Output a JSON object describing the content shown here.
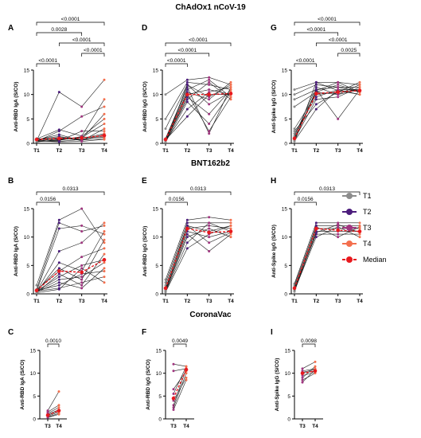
{
  "sections": {
    "chadox": "ChAdOx1 nCoV-19",
    "bnt": "BNT162b2",
    "coronavac": "CoronaVac"
  },
  "colors": {
    "T1": "#8c8c8c",
    "T2": "#4b1c7c",
    "T3": "#a0357f",
    "T4": "#f36f4e",
    "median": "#e8191e",
    "line": "#1a1a1a"
  },
  "legend": [
    {
      "label": "T1",
      "color": "#8c8c8c",
      "type": "point"
    },
    {
      "label": "T2",
      "color": "#4b1c7c",
      "type": "point"
    },
    {
      "label": "T3",
      "color": "#a0357f",
      "type": "point"
    },
    {
      "label": "T4",
      "color": "#f36f4e",
      "type": "point"
    },
    {
      "label": "Median",
      "color": "#e8191e",
      "type": "median"
    }
  ],
  "chart_data": [
    {
      "panel": "A",
      "type": "line",
      "ylabel": "Anti-RBD IgA (S/CO)",
      "categories": [
        "T1",
        "T2",
        "T3",
        "T4"
      ],
      "ylim": [
        0,
        15
      ],
      "yticks": [
        0,
        5,
        10,
        15
      ],
      "median": [
        0.8,
        1.0,
        1.1,
        1.6
      ],
      "series": [
        {
          "values": [
            0.5,
            10.5,
            7.5,
            13
          ]
        },
        {
          "values": [
            0.9,
            2.8,
            1.5,
            9
          ]
        },
        {
          "values": [
            0.4,
            2.5,
            5.5,
            7.5
          ]
        },
        {
          "values": [
            0.6,
            1.2,
            0.9,
            6
          ]
        },
        {
          "values": [
            1.0,
            0.6,
            1.4,
            5
          ]
        },
        {
          "values": [
            0.3,
            0.8,
            1.2,
            4
          ]
        },
        {
          "values": [
            0.7,
            1.8,
            0.5,
            3
          ]
        },
        {
          "values": [
            0.5,
            0.5,
            2.5,
            2.5
          ]
        },
        {
          "values": [
            0.9,
            0.9,
            1.0,
            2
          ]
        },
        {
          "values": [
            0.4,
            1.1,
            0.6,
            1.8
          ]
        },
        {
          "values": [
            0.6,
            0.4,
            0.8,
            1.5
          ]
        },
        {
          "values": [
            0.3,
            0.7,
            1.3,
            1.2
          ]
        },
        {
          "values": [
            0.8,
            1.4,
            0.7,
            1.0
          ]
        },
        {
          "values": [
            0.5,
            0.3,
            0.4,
            0.8
          ]
        }
      ],
      "comparisons": [
        {
          "from": 0,
          "to": 1,
          "label": "<0.0001"
        },
        {
          "from": 2,
          "to": 3,
          "label": "<0.0001"
        },
        {
          "from": 1,
          "to": 3,
          "label": "<0.0001"
        },
        {
          "from": 0,
          "to": 2,
          "label": "0.0028"
        },
        {
          "from": 0,
          "to": 3,
          "label": "<0.0001"
        }
      ]
    },
    {
      "panel": "D",
      "type": "line",
      "ylabel": "Anti-RBD IgG (S/CO)",
      "categories": [
        "T1",
        "T2",
        "T3",
        "T4"
      ],
      "ylim": [
        0,
        15
      ],
      "yticks": [
        0,
        5,
        10,
        15
      ],
      "median": [
        0.8,
        10.0,
        10.0,
        10.2
      ],
      "series": [
        {
          "values": [
            10.0,
            13.0,
            13.5,
            12.0
          ]
        },
        {
          "values": [
            5.0,
            12.5,
            12.0,
            11.0
          ]
        },
        {
          "values": [
            3.0,
            12.0,
            8.0,
            10.5
          ]
        },
        {
          "values": [
            1.0,
            11.5,
            2.0,
            11.5
          ]
        },
        {
          "values": [
            0.8,
            11.0,
            13.0,
            9.5
          ]
        },
        {
          "values": [
            0.5,
            10.5,
            9.0,
            12.5
          ]
        },
        {
          "values": [
            0.4,
            10.0,
            11.0,
            10.0
          ]
        },
        {
          "values": [
            0.3,
            9.5,
            6.0,
            11.0
          ]
        },
        {
          "values": [
            0.6,
            9.0,
            12.5,
            9.0
          ]
        },
        {
          "values": [
            0.2,
            8.5,
            4.0,
            10.5
          ]
        },
        {
          "values": [
            0.5,
            7.0,
            10.5,
            11.5
          ]
        },
        {
          "values": [
            0.7,
            5.5,
            10.0,
            10.0
          ]
        },
        {
          "values": [
            0.3,
            12.0,
            9.5,
            12.0
          ]
        },
        {
          "values": [
            0.9,
            10.2,
            2.5,
            9.5
          ]
        }
      ],
      "comparisons": [
        {
          "from": 0,
          "to": 1,
          "label": "<0.0001"
        },
        {
          "from": 0,
          "to": 2,
          "label": "<0.0001"
        },
        {
          "from": 0,
          "to": 3,
          "label": "<0.0001"
        }
      ]
    },
    {
      "panel": "G",
      "type": "line",
      "ylabel": "Anti-Spike IgG (S/CO)",
      "categories": [
        "T1",
        "T2",
        "T3",
        "T4"
      ],
      "ylim": [
        0,
        15
      ],
      "yticks": [
        0,
        5,
        10,
        15
      ],
      "median": [
        1.0,
        10.2,
        10.5,
        10.8
      ],
      "series": [
        {
          "values": [
            11.0,
            12.5,
            12.5,
            12.0
          ]
        },
        {
          "values": [
            10.0,
            12.0,
            11.5,
            11.5
          ]
        },
        {
          "values": [
            9.0,
            11.0,
            5.0,
            11.0
          ]
        },
        {
          "values": [
            7.5,
            10.5,
            12.0,
            10.5
          ]
        },
        {
          "values": [
            3.0,
            10.0,
            10.5,
            12.5
          ]
        },
        {
          "values": [
            2.0,
            9.5,
            11.0,
            10.0
          ]
        },
        {
          "values": [
            1.5,
            11.5,
            10.0,
            11.0
          ]
        },
        {
          "values": [
            1.0,
            10.8,
            12.5,
            10.5
          ]
        },
        {
          "values": [
            0.8,
            9.0,
            9.5,
            11.5
          ]
        },
        {
          "values": [
            0.6,
            12.5,
            10.8,
            10.0
          ]
        },
        {
          "values": [
            0.5,
            7.0,
            11.0,
            11.0
          ]
        },
        {
          "values": [
            1.2,
            10.5,
            10.0,
            12.0
          ]
        },
        {
          "values": [
            0.4,
            11.0,
            11.5,
            10.5
          ]
        },
        {
          "values": [
            2.5,
            8.0,
            10.5,
            11.0
          ]
        }
      ],
      "comparisons": [
        {
          "from": 0,
          "to": 1,
          "label": "<0.0001"
        },
        {
          "from": 2,
          "to": 3,
          "label": "0.0025"
        },
        {
          "from": 1,
          "to": 3,
          "label": "<0.0001"
        },
        {
          "from": 0,
          "to": 2,
          "label": "<0.0001"
        },
        {
          "from": 0,
          "to": 3,
          "label": "<0.0001"
        }
      ]
    },
    {
      "panel": "B",
      "type": "line",
      "ylabel": "Anti-RBD IgA (S/CO)",
      "categories": [
        "T1",
        "T2",
        "T3",
        "T4"
      ],
      "ylim": [
        0,
        15
      ],
      "yticks": [
        0,
        5,
        10,
        15
      ],
      "median": [
        0.6,
        4.0,
        3.8,
        6.0
      ],
      "series": [
        {
          "values": [
            1.5,
            13.0,
            15.0,
            9.0
          ]
        },
        {
          "values": [
            0.8,
            12.5,
            11.0,
            12.0
          ]
        },
        {
          "values": [
            0.5,
            11.5,
            12.0,
            10.5
          ]
        },
        {
          "values": [
            0.4,
            7.5,
            9.0,
            12.5
          ]
        },
        {
          "values": [
            0.3,
            5.5,
            4.0,
            11.0
          ]
        },
        {
          "values": [
            0.6,
            4.5,
            2.5,
            9.5
          ]
        },
        {
          "values": [
            0.7,
            4.0,
            6.5,
            8.0
          ]
        },
        {
          "values": [
            0.2,
            3.5,
            1.5,
            7.0
          ]
        },
        {
          "values": [
            0.5,
            3.0,
            5.0,
            6.0
          ]
        },
        {
          "values": [
            0.4,
            2.5,
            3.0,
            5.5
          ]
        },
        {
          "values": [
            0.3,
            2.0,
            1.0,
            4.5
          ]
        },
        {
          "values": [
            0.6,
            1.5,
            3.5,
            4.0
          ]
        },
        {
          "values": [
            0.5,
            1.0,
            2.0,
            3.0
          ]
        },
        {
          "values": [
            0.2,
            0.8,
            4.5,
            2.0
          ]
        }
      ],
      "comparisons": [
        {
          "from": 0,
          "to": 1,
          "label": "0.0156"
        },
        {
          "from": 0,
          "to": 3,
          "label": "0.0313"
        }
      ]
    },
    {
      "panel": "E",
      "type": "line",
      "ylabel": "Anti-RBD IgG (S/CO)",
      "categories": [
        "T1",
        "T2",
        "T3",
        "T4"
      ],
      "ylim": [
        0,
        15
      ],
      "yticks": [
        0,
        5,
        10,
        15
      ],
      "median": [
        1.0,
        11.5,
        10.8,
        11.0
      ],
      "series": [
        {
          "values": [
            2.5,
            13.0,
            13.5,
            13.0
          ]
        },
        {
          "values": [
            2.0,
            12.5,
            12.5,
            12.5
          ]
        },
        {
          "values": [
            1.5,
            12.0,
            11.0,
            12.0
          ]
        },
        {
          "values": [
            1.0,
            11.5,
            12.0,
            11.5
          ]
        },
        {
          "values": [
            0.8,
            11.0,
            10.0,
            11.0
          ]
        },
        {
          "values": [
            0.6,
            10.5,
            7.5,
            10.5
          ]
        },
        {
          "values": [
            0.5,
            10.0,
            11.5,
            10.0
          ]
        },
        {
          "values": [
            0.4,
            9.0,
            12.5,
            11.0
          ]
        },
        {
          "values": [
            0.3,
            8.0,
            10.5,
            12.0
          ]
        },
        {
          "values": [
            0.7,
            12.0,
            9.0,
            10.8
          ]
        }
      ],
      "comparisons": [
        {
          "from": 0,
          "to": 1,
          "label": "0.0156"
        },
        {
          "from": 0,
          "to": 3,
          "label": "0.0313"
        }
      ]
    },
    {
      "panel": "H",
      "type": "line",
      "ylabel": "Anti-Spike IgG (S/CO)",
      "categories": [
        "T1",
        "T2",
        "T3",
        "T4"
      ],
      "ylim": [
        0,
        15
      ],
      "yticks": [
        0,
        5,
        10,
        15
      ],
      "median": [
        1.0,
        11.5,
        11.2,
        11.0
      ],
      "series": [
        {
          "values": [
            1.8,
            12.5,
            12.5,
            12.5
          ]
        },
        {
          "values": [
            1.5,
            12.0,
            12.0,
            12.0
          ]
        },
        {
          "values": [
            1.2,
            11.5,
            11.5,
            11.5
          ]
        },
        {
          "values": [
            1.0,
            11.0,
            11.0,
            11.0
          ]
        },
        {
          "values": [
            0.8,
            10.5,
            10.5,
            10.5
          ]
        },
        {
          "values": [
            0.6,
            10.0,
            11.8,
            10.0
          ]
        },
        {
          "values": [
            0.5,
            11.8,
            10.0,
            11.8
          ]
        },
        {
          "values": [
            0.4,
            10.8,
            12.2,
            10.8
          ]
        }
      ],
      "comparisons": [
        {
          "from": 0,
          "to": 1,
          "label": "0.0156"
        },
        {
          "from": 0,
          "to": 3,
          "label": "0.0313"
        }
      ]
    },
    {
      "panel": "C",
      "type": "line",
      "ylabel": "Anti-RBD IgA (S/CO)",
      "categories": [
        "T3",
        "T4"
      ],
      "ylim": [
        0,
        15
      ],
      "yticks": [
        0,
        5,
        10,
        15
      ],
      "median": [
        0.8,
        1.8
      ],
      "series": [
        {
          "values": [
            1.8,
            6.0
          ]
        },
        {
          "values": [
            1.5,
            3.0
          ]
        },
        {
          "values": [
            1.2,
            2.5
          ]
        },
        {
          "values": [
            1.0,
            2.0
          ]
        },
        {
          "values": [
            0.8,
            1.8
          ]
        },
        {
          "values": [
            0.6,
            1.5
          ]
        },
        {
          "values": [
            0.4,
            1.2
          ]
        },
        {
          "values": [
            0.3,
            1.0
          ]
        }
      ],
      "comparisons": [
        {
          "from": 0,
          "to": 1,
          "label": "0.0010"
        }
      ]
    },
    {
      "panel": "F",
      "type": "line",
      "ylabel": "Anti-RBD IgG (S/CO)",
      "categories": [
        "T3",
        "T4"
      ],
      "ylim": [
        0,
        15
      ],
      "yticks": [
        0,
        5,
        10,
        15
      ],
      "median": [
        4.5,
        10.8
      ],
      "series": [
        {
          "values": [
            12.0,
            11.5
          ]
        },
        {
          "values": [
            10.5,
            11.0
          ]
        },
        {
          "values": [
            6.5,
            10.5
          ]
        },
        {
          "values": [
            5.5,
            11.5
          ]
        },
        {
          "values": [
            4.0,
            9.0
          ]
        },
        {
          "values": [
            3.0,
            11.0
          ]
        },
        {
          "values": [
            2.5,
            10.0
          ]
        },
        {
          "values": [
            2.0,
            8.5
          ]
        }
      ],
      "comparisons": [
        {
          "from": 0,
          "to": 1,
          "label": "0.0049"
        }
      ]
    },
    {
      "panel": "I",
      "type": "line",
      "ylabel": "Anti-Spike IgG (S/CO)",
      "categories": [
        "T3",
        "T4"
      ],
      "ylim": [
        0,
        15
      ],
      "yticks": [
        0,
        5,
        10,
        15
      ],
      "median": [
        10.0,
        10.5
      ],
      "series": [
        {
          "values": [
            11.0,
            12.5
          ]
        },
        {
          "values": [
            10.5,
            11.0
          ]
        },
        {
          "values": [
            10.2,
            10.8
          ]
        },
        {
          "values": [
            10.0,
            10.5
          ]
        },
        {
          "values": [
            9.5,
            10.2
          ]
        },
        {
          "values": [
            9.0,
            11.5
          ]
        },
        {
          "values": [
            8.5,
            10.0
          ]
        },
        {
          "values": [
            8.0,
            10.8
          ]
        }
      ],
      "comparisons": [
        {
          "from": 0,
          "to": 1,
          "label": "0.0098"
        }
      ]
    }
  ]
}
